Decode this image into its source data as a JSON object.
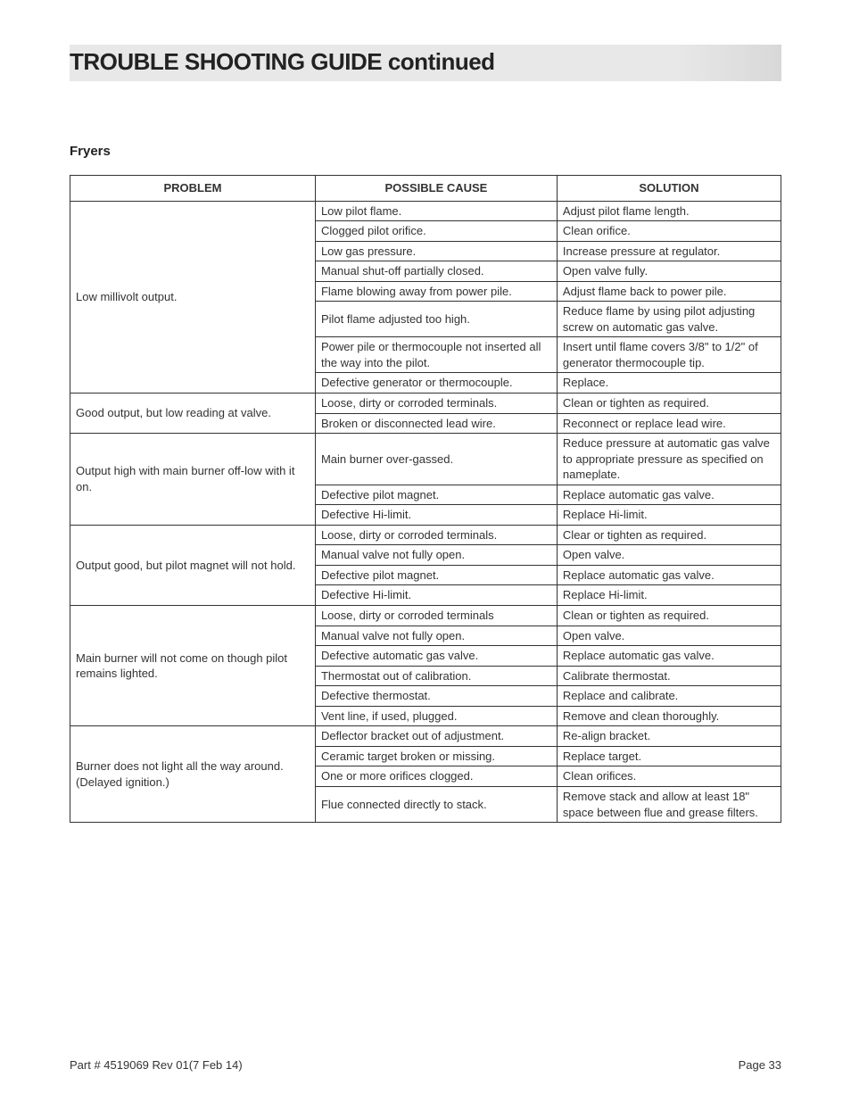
{
  "title": "TROUBLE SHOOTING GUIDE continued",
  "subhead": "Fryers",
  "headers": {
    "problem": "PROBLEM",
    "cause": "POSSIBLE CAUSE",
    "solution": "SOLUTION"
  },
  "groups": [
    {
      "problem": "Low millivolt output.",
      "rows": [
        {
          "cause": "Low pilot flame.",
          "solution": "Adjust pilot flame length."
        },
        {
          "cause": "Clogged pilot orifice.",
          "solution": "Clean orifice."
        },
        {
          "cause": "Low gas pressure.",
          "solution": "Increase pressure at regulator."
        },
        {
          "cause": "Manual shut-off partially closed.",
          "solution": "Open valve fully."
        },
        {
          "cause": "Flame blowing away from power pile.",
          "solution": "Adjust flame back to power pile."
        },
        {
          "cause": "Pilot flame adjusted too high.",
          "solution": "Reduce flame by using pilot adjusting screw on automatic gas valve."
        },
        {
          "cause": "Power pile or thermocouple not inserted all the way into the pilot.",
          "solution": "Insert until flame covers 3/8\" to 1/2\" of generator thermocouple tip."
        },
        {
          "cause": "Defective generator or thermocouple.",
          "solution": "Replace."
        }
      ]
    },
    {
      "problem": "Good output, but low reading at valve.",
      "rows": [
        {
          "cause": "Loose, dirty or corroded terminals.",
          "solution": "Clean or tighten as required."
        },
        {
          "cause": "Broken or disconnected lead wire.",
          "solution": "Reconnect or replace lead wire."
        }
      ]
    },
    {
      "problem": "Output high with main burner off-low with it on.",
      "rows": [
        {
          "cause": "Main burner over-gassed.",
          "solution": "Reduce pressure at automatic gas valve to appropriate pressure as specified on nameplate."
        },
        {
          "cause": "Defective pilot magnet.",
          "solution": "Replace automatic gas valve."
        },
        {
          "cause": "Defective Hi-limit.",
          "solution": "Replace Hi-limit."
        }
      ]
    },
    {
      "problem": "Output good, but pilot magnet will not hold.",
      "rows": [
        {
          "cause": "Loose, dirty or corroded terminals.",
          "solution": "Clear or tighten as required."
        },
        {
          "cause": "Manual valve not fully open.",
          "solution": "Open valve."
        },
        {
          "cause": "Defective pilot magnet.",
          "solution": "Replace automatic gas valve."
        },
        {
          "cause": "Defective Hi-limit.",
          "solution": "Replace Hi-limit."
        }
      ]
    },
    {
      "problem": "Main burner will not come on though pilot remains lighted.",
      "rows": [
        {
          "cause": "Loose, dirty or corroded terminals",
          "solution": "Clean or tighten as required."
        },
        {
          "cause": "Manual valve not fully open.",
          "solution": "Open valve."
        },
        {
          "cause": "Defective automatic gas valve.",
          "solution": "Replace automatic gas valve."
        },
        {
          "cause": "Thermostat out of calibration.",
          "solution": "Calibrate thermostat."
        },
        {
          "cause": "Defective thermostat.",
          "solution": "Replace and calibrate."
        },
        {
          "cause": "Vent line, if used, plugged.",
          "solution": "Remove and clean thoroughly."
        }
      ]
    },
    {
      "problem": "Burner does not light all the way around. (Delayed ignition.)",
      "rows": [
        {
          "cause": "Deflector bracket out of adjustment.",
          "solution": "Re-align bracket."
        },
        {
          "cause": "Ceramic target broken or missing.",
          "solution": "Replace target."
        },
        {
          "cause": "One or more orifices clogged.",
          "solution": "Clean orifices."
        },
        {
          "cause": "Flue connected directly to stack.",
          "solution": "Remove stack and allow at least 18\" space between flue and grease filters."
        }
      ]
    }
  ],
  "footer": {
    "left": "Part # 4519069 Rev 01(7 Feb 14)",
    "right": "Page 33"
  }
}
